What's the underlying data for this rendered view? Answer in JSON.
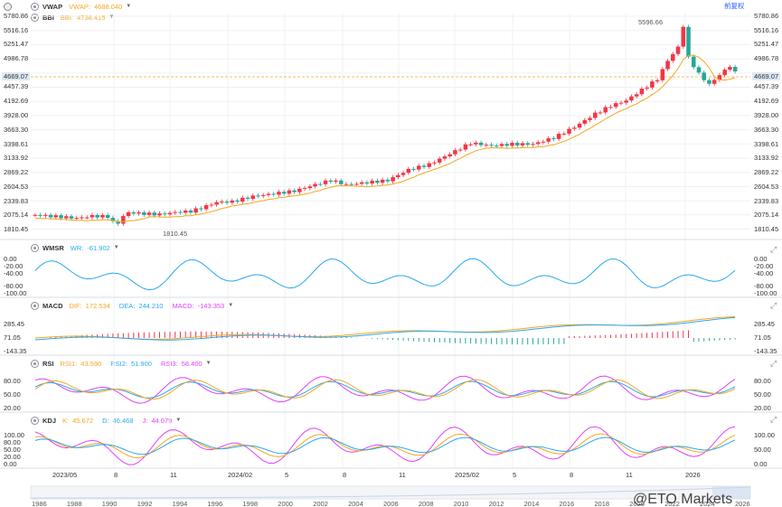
{
  "toolbar": {
    "restore_label": "前复权"
  },
  "main_panel": {
    "vwap": {
      "name": "VWAP",
      "label": "VWAP:",
      "value": "4688.040",
      "color": "#f5a623"
    },
    "bbi": {
      "name": "BBI",
      "label": "BBI:",
      "value": "4738.415",
      "color": "#f5a623"
    },
    "price_axis": [
      "5780.86",
      "5516.16",
      "5251.47",
      "4986.78",
      "4457.39",
      "4192.69",
      "3928.00",
      "3663.30",
      "3398.61",
      "3133.92",
      "2869.22",
      "2604.53",
      "2339.83",
      "2075.14",
      "1810.45"
    ],
    "current_price": "4669.07",
    "high_label": "5596.66",
    "low_label": "1810.45"
  },
  "wmsr": {
    "name": "WMSR",
    "label": "WR:",
    "value": "-61.902",
    "color": "#29a9f0",
    "left_axis": [
      "0.00",
      "-20.00",
      "-40.00",
      "-80.00",
      "-100.00"
    ],
    "right_axis": [
      "0.00",
      "-20.00",
      "-40.00",
      "-80.00",
      "-100.00"
    ]
  },
  "macd": {
    "name": "MACD",
    "dif": {
      "label": "DIF:",
      "value": "172.534",
      "color": "#f5a623"
    },
    "dea": {
      "label": "DEA:",
      "value": "244.210",
      "color": "#29a9f0"
    },
    "macd": {
      "label": "MACD:",
      "value": "-143.353",
      "color": "#e040fb"
    },
    "left_axis": [
      "285.45",
      "71.05",
      "-143.35"
    ],
    "right_axis": [
      "285.45",
      "71.05",
      "-143.35"
    ]
  },
  "rsi": {
    "name": "RSI",
    "rsi1": {
      "label": "RSI1:",
      "value": "43.590",
      "color": "#f5a623"
    },
    "rsi2": {
      "label": "RSI2:",
      "value": "51.900",
      "color": "#29a9f0"
    },
    "rsi3": {
      "label": "RSI3:",
      "value": "58.400",
      "color": "#e040fb"
    },
    "left_axis": [
      "80.00",
      "50.00",
      "20.00"
    ],
    "right_axis": [
      "80.00",
      "50.00",
      "20.00"
    ]
  },
  "kdj": {
    "name": "KDJ",
    "k": {
      "label": "K:",
      "value": "45.672",
      "color": "#f5a623"
    },
    "d": {
      "label": "D:",
      "value": "46.468",
      "color": "#29a9f0"
    },
    "j": {
      "label": "J:",
      "value": "44.079",
      "color": "#e040fb"
    },
    "left_axis": [
      "100.00",
      "80.00",
      "50.00",
      "20.00",
      "0.00"
    ],
    "right_axis": [
      "100.00",
      "50.00",
      "0.00"
    ]
  },
  "x_axis": [
    "2023/05",
    "8",
    "11",
    "2024/02",
    "5",
    "8",
    "11",
    "2025/02",
    "5",
    "8",
    "11"
  ],
  "x_axis_last": "2026",
  "timeline_years": [
    "1986",
    "1988",
    "1990",
    "1992",
    "1994",
    "1996",
    "1998",
    "2000",
    "2002",
    "2004",
    "2006",
    "2008",
    "2010",
    "2012",
    "2014",
    "2016",
    "2018",
    "2020",
    "2022",
    "2024",
    "2026"
  ],
  "watermark": "@ETO Markets",
  "colors": {
    "up": "#f23645",
    "down": "#26a69a",
    "grid": "#eef0f3",
    "price_line": "#f5a623"
  }
}
